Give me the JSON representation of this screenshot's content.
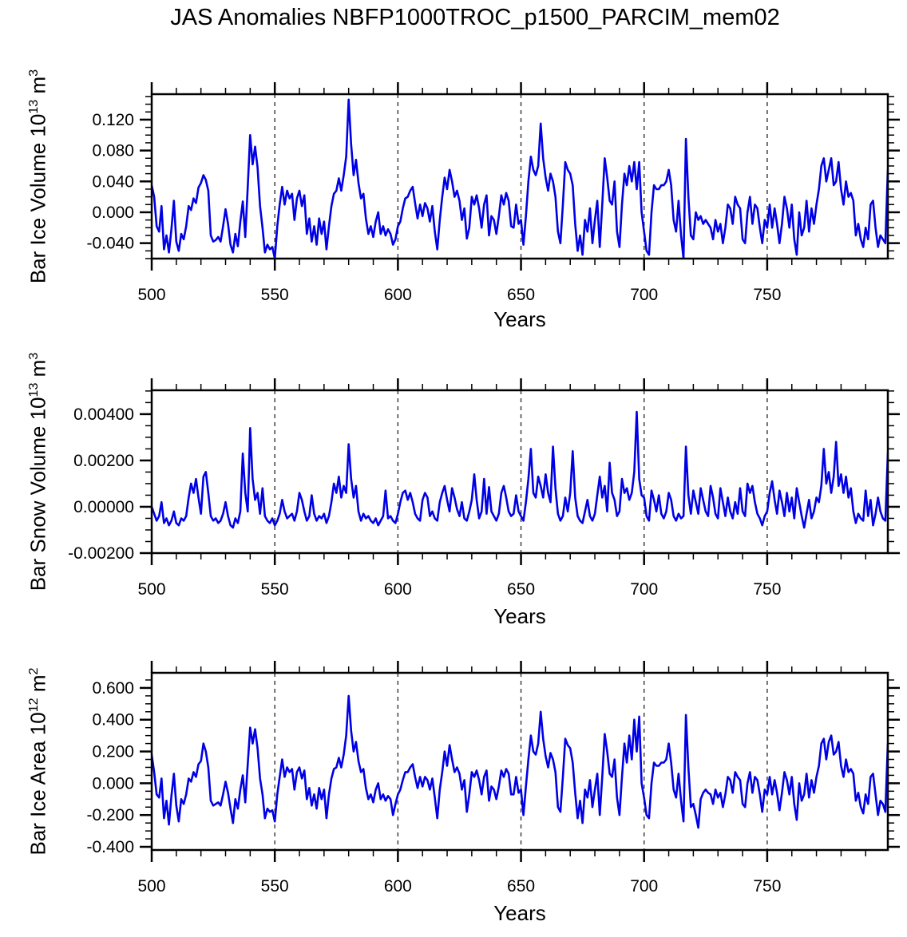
{
  "title": "JAS Anomalies NBFP1000TROC_p1500_PARCIM_mem02",
  "colors": {
    "line": "#0000E6",
    "frame": "#000000",
    "grid": "#333333"
  },
  "chart_data": [
    {
      "id": "bar-ice-volume",
      "type": "line",
      "series_name": "Bar Ice Volume anomaly",
      "ylabel": {
        "base": "Bar Ice Volume 10",
        "exp": "13",
        "unit": " m",
        "unit_exp": "3"
      },
      "xlabel": "Years",
      "x_start": 500,
      "x_step": 1,
      "xlim": [
        500,
        799
      ],
      "ylim": [
        -0.06,
        0.153
      ],
      "xticks": {
        "values": [
          500,
          550,
          600,
          650,
          700,
          750
        ],
        "labels": [
          "500",
          "550",
          "600",
          "650",
          "700",
          "750"
        ]
      },
      "yticks": {
        "values": [
          -0.04,
          0.0,
          0.04,
          0.08,
          0.12
        ],
        "labels": [
          "-0.040",
          "0.000",
          "0.040",
          "0.080",
          "0.120"
        ]
      },
      "x_minor_step": 10,
      "y_minor_step": 0.01,
      "grid_x": [
        550,
        600,
        650,
        700,
        750
      ],
      "value_scale": 0.001,
      "values": [
        35,
        20,
        -18,
        -25,
        8,
        -48,
        -30,
        -52,
        -22,
        15,
        -38,
        -50,
        -28,
        -35,
        -18,
        8,
        3,
        18,
        12,
        32,
        38,
        48,
        42,
        28,
        -30,
        -38,
        -36,
        -32,
        -38,
        -18,
        4,
        -15,
        -42,
        -52,
        -28,
        -44,
        -12,
        14,
        -32,
        33,
        100,
        62,
        85,
        58,
        8,
        -20,
        -52,
        -42,
        -48,
        -45,
        -60,
        -18,
        10,
        33,
        10,
        28,
        18,
        24,
        -10,
        18,
        28,
        8,
        22,
        -28,
        -8,
        -38,
        -18,
        -42,
        -8,
        -28,
        -12,
        -48,
        -18,
        8,
        24,
        28,
        44,
        28,
        48,
        72,
        146,
        88,
        48,
        68,
        38,
        18,
        24,
        -8,
        -28,
        -18,
        -32,
        -12,
        0,
        -28,
        -18,
        -30,
        -22,
        -28,
        -42,
        -35,
        -18,
        -12,
        5,
        18,
        20,
        28,
        33,
        12,
        -8,
        10,
        -5,
        12,
        5,
        -12,
        8,
        -25,
        -48,
        -10,
        20,
        45,
        30,
        55,
        40,
        20,
        28,
        15,
        -10,
        5,
        -34,
        -20,
        20,
        10,
        22,
        5,
        -20,
        10,
        22,
        -30,
        -5,
        -10,
        -28,
        -5,
        22,
        10,
        25,
        15,
        -18,
        -20,
        10,
        -15,
        -10,
        -42,
        -5,
        40,
        72,
        55,
        48,
        60,
        115,
        70,
        45,
        28,
        50,
        40,
        20,
        -25,
        -40,
        10,
        65,
        55,
        50,
        35,
        -15,
        -50,
        -30,
        -55,
        -10,
        -25,
        5,
        -40,
        -10,
        15,
        -45,
        10,
        70,
        45,
        15,
        10,
        40,
        -25,
        -45,
        10,
        50,
        35,
        60,
        40,
        65,
        30,
        65,
        0,
        -25,
        -50,
        -55,
        0,
        35,
        30,
        30,
        35,
        35,
        40,
        55,
        35,
        -10,
        -25,
        15,
        -30,
        -60,
        95,
        20,
        -30,
        -35,
        0,
        -10,
        -5,
        -15,
        -10,
        -15,
        -20,
        -35,
        -10,
        -25,
        -15,
        -40,
        -20,
        10,
        5,
        -15,
        20,
        10,
        5,
        -35,
        -40,
        0,
        20,
        -15,
        10,
        5,
        -20,
        -40,
        -10,
        -20,
        10,
        -20,
        5,
        -15,
        -40,
        -15,
        20,
        5,
        -20,
        10,
        -35,
        -55,
        0,
        -30,
        -20,
        15,
        -25,
        5,
        -15,
        10,
        30,
        60,
        70,
        40,
        55,
        70,
        35,
        40,
        65,
        30,
        10,
        40,
        20,
        25,
        15,
        -30,
        -15,
        -35,
        -45,
        -20,
        -35,
        10,
        15,
        -20,
        -45,
        -30,
        -35,
        -40,
        55
      ]
    },
    {
      "id": "bar-snow-volume",
      "type": "line",
      "series_name": "Bar Snow Volume anomaly",
      "ylabel": {
        "base": "Bar Snow Volume 10",
        "exp": "13",
        "unit": " m",
        "unit_exp": "3"
      },
      "xlabel": "Years",
      "x_start": 500,
      "x_step": 1,
      "xlim": [
        500,
        799
      ],
      "ylim": [
        -0.002,
        0.00503
      ],
      "xticks": {
        "values": [
          500,
          550,
          600,
          650,
          700,
          750
        ],
        "labels": [
          "500",
          "550",
          "600",
          "650",
          "700",
          "750"
        ]
      },
      "yticks": {
        "values": [
          -0.002,
          0.0,
          0.002,
          0.004
        ],
        "labels": [
          "-0.00200",
          "0.00000",
          "0.00200",
          "0.00400"
        ]
      },
      "x_minor_step": 10,
      "y_minor_step": 0.0005,
      "grid_x": [
        550,
        600,
        650,
        700,
        750
      ],
      "value_scale": 1e-05,
      "values": [
        0,
        -30,
        -60,
        -40,
        20,
        -70,
        -50,
        -80,
        -60,
        -20,
        -70,
        -80,
        -50,
        -60,
        -40,
        40,
        100,
        60,
        120,
        40,
        -30,
        130,
        150,
        60,
        -40,
        -60,
        -50,
        -70,
        -60,
        -30,
        20,
        -40,
        -80,
        -90,
        -50,
        -70,
        -20,
        230,
        60,
        -20,
        340,
        120,
        30,
        60,
        -30,
        80,
        -40,
        -60,
        -70,
        -50,
        -80,
        -60,
        -30,
        30,
        -20,
        -50,
        -40,
        -30,
        -60,
        -20,
        60,
        30,
        -20,
        -60,
        -40,
        50,
        -30,
        -60,
        -40,
        -50,
        -30,
        -70,
        -40,
        20,
        100,
        60,
        130,
        40,
        90,
        60,
        270,
        120,
        40,
        90,
        -20,
        -60,
        -30,
        -50,
        -40,
        -60,
        -70,
        -50,
        -80,
        -60,
        -40,
        70,
        -50,
        -40,
        -60,
        -70,
        -30,
        20,
        60,
        70,
        30,
        60,
        20,
        -30,
        -50,
        -60,
        30,
        60,
        40,
        -40,
        -20,
        -50,
        -60,
        20,
        60,
        90,
        30,
        -20,
        80,
        40,
        -10,
        -40,
        20,
        -50,
        -60,
        -20,
        30,
        140,
        30,
        -50,
        -20,
        120,
        -30,
        85,
        -20,
        -40,
        -60,
        -30,
        60,
        90,
        40,
        -20,
        -40,
        -30,
        50,
        -20,
        -40,
        -60,
        20,
        120,
        250,
        60,
        40,
        130,
        90,
        40,
        140,
        60,
        20,
        260,
        80,
        -30,
        -60,
        -40,
        40,
        -20,
        60,
        240,
        40,
        -40,
        -60,
        -70,
        -20,
        30,
        -40,
        -60,
        -30,
        50,
        130,
        40,
        90,
        -20,
        190,
        60,
        30,
        -40,
        -20,
        120,
        60,
        80,
        30,
        60,
        150,
        410,
        120,
        50,
        40,
        -40,
        -60,
        70,
        30,
        -20,
        50,
        -30,
        -50,
        -20,
        60,
        30,
        -40,
        -60,
        -30,
        -50,
        -40,
        260,
        50,
        -30,
        70,
        20,
        -30,
        80,
        30,
        -20,
        -40,
        90,
        40,
        -30,
        -50,
        80,
        20,
        -40,
        40,
        -20,
        -50,
        20,
        -30,
        80,
        -20,
        -40,
        100,
        60,
        90,
        20,
        -30,
        -50,
        -80,
        -40,
        -20,
        60,
        110,
        30,
        -30,
        70,
        20,
        -40,
        60,
        -20,
        40,
        -50,
        80,
        20,
        -40,
        -90,
        -30,
        30,
        -50,
        -20,
        40,
        20,
        90,
        250,
        100,
        150,
        60,
        130,
        280,
        90,
        140,
        60,
        130,
        40,
        80,
        -20,
        -70,
        -30,
        -50,
        -60,
        70,
        -40,
        30,
        -80,
        -30,
        40,
        -20,
        -50,
        -60,
        230
      ]
    },
    {
      "id": "bar-ice-area",
      "type": "line",
      "series_name": "Bar Ice Area anomaly",
      "ylabel": {
        "base": "Bar Ice Area 10",
        "exp": "12",
        "unit": " m",
        "unit_exp": "2"
      },
      "xlabel": "Years",
      "x_start": 500,
      "x_step": 1,
      "xlim": [
        500,
        799
      ],
      "ylim": [
        -0.42,
        0.695
      ],
      "xticks": {
        "values": [
          500,
          550,
          600,
          650,
          700,
          750
        ],
        "labels": [
          "500",
          "550",
          "600",
          "650",
          "700",
          "750"
        ]
      },
      "yticks": {
        "values": [
          -0.4,
          -0.2,
          0.0,
          0.2,
          0.4,
          0.6
        ],
        "labels": [
          "-0.400",
          "-0.200",
          "0.000",
          "0.200",
          "0.400",
          "0.600"
        ]
      },
      "x_minor_step": 10,
      "y_minor_step": 0.05,
      "grid_x": [
        550,
        600,
        650,
        700,
        750
      ],
      "value_scale": 0.01,
      "values": [
        18,
        7,
        -7,
        -9,
        3,
        -22,
        -11,
        -26,
        -8,
        6,
        -14,
        -24,
        -10,
        -13,
        -7,
        3,
        1,
        7,
        4,
        12,
        14,
        25,
        20,
        10,
        -11,
        -14,
        -13,
        -12,
        -14,
        -7,
        1,
        -6,
        -16,
        -25,
        -10,
        -16,
        -4,
        5,
        -12,
        12,
        35,
        25,
        34,
        22,
        3,
        -7,
        -22,
        -16,
        -18,
        -17,
        -24,
        -7,
        4,
        15,
        4,
        10,
        7,
        9,
        -4,
        7,
        10,
        3,
        8,
        -10,
        -3,
        -14,
        -7,
        -16,
        -3,
        -10,
        -4,
        -22,
        -7,
        3,
        9,
        10,
        16,
        10,
        18,
        30,
        55,
        33,
        20,
        26,
        14,
        7,
        9,
        -3,
        -10,
        -7,
        -12,
        -4,
        0,
        -10,
        -7,
        -11,
        -8,
        -10,
        -20,
        -13,
        -7,
        -4,
        2,
        7,
        7,
        10,
        12,
        4,
        -3,
        4,
        -2,
        4,
        2,
        -4,
        3,
        -9,
        -22,
        -4,
        7,
        20,
        11,
        24,
        15,
        7,
        10,
        6,
        -4,
        2,
        -18,
        -7,
        7,
        4,
        8,
        2,
        -7,
        4,
        8,
        -11,
        -2,
        -4,
        -10,
        -2,
        8,
        4,
        9,
        6,
        -7,
        -7,
        4,
        -6,
        -4,
        -20,
        -2,
        15,
        30,
        20,
        18,
        25,
        45,
        28,
        17,
        10,
        19,
        15,
        7,
        -15,
        -18,
        4,
        28,
        24,
        22,
        13,
        -6,
        -22,
        -11,
        -25,
        -4,
        -9,
        2,
        -15,
        -4,
        6,
        -20,
        4,
        31,
        20,
        6,
        4,
        15,
        -9,
        -20,
        4,
        25,
        13,
        30,
        15,
        40,
        20,
        42,
        0,
        -9,
        -20,
        -22,
        0,
        13,
        11,
        11,
        13,
        13,
        15,
        25,
        13,
        -4,
        -9,
        6,
        -11,
        -24,
        43,
        10,
        -15,
        -13,
        -20,
        -28,
        -10,
        -6,
        -4,
        -6,
        -7,
        -13,
        -4,
        -9,
        -6,
        -15,
        -7,
        4,
        2,
        -6,
        7,
        4,
        2,
        -13,
        -15,
        0,
        7,
        -6,
        4,
        2,
        -7,
        -18,
        -4,
        -7,
        4,
        -7,
        2,
        -6,
        -17,
        -6,
        7,
        2,
        -7,
        4,
        -13,
        -23,
        0,
        -11,
        -7,
        6,
        -9,
        2,
        -6,
        4,
        11,
        25,
        28,
        15,
        26,
        30,
        18,
        20,
        26,
        11,
        4,
        15,
        7,
        9,
        6,
        -11,
        -6,
        -15,
        -19,
        -7,
        -13,
        4,
        6,
        -7,
        -20,
        -11,
        -13,
        -18,
        25
      ]
    }
  ]
}
